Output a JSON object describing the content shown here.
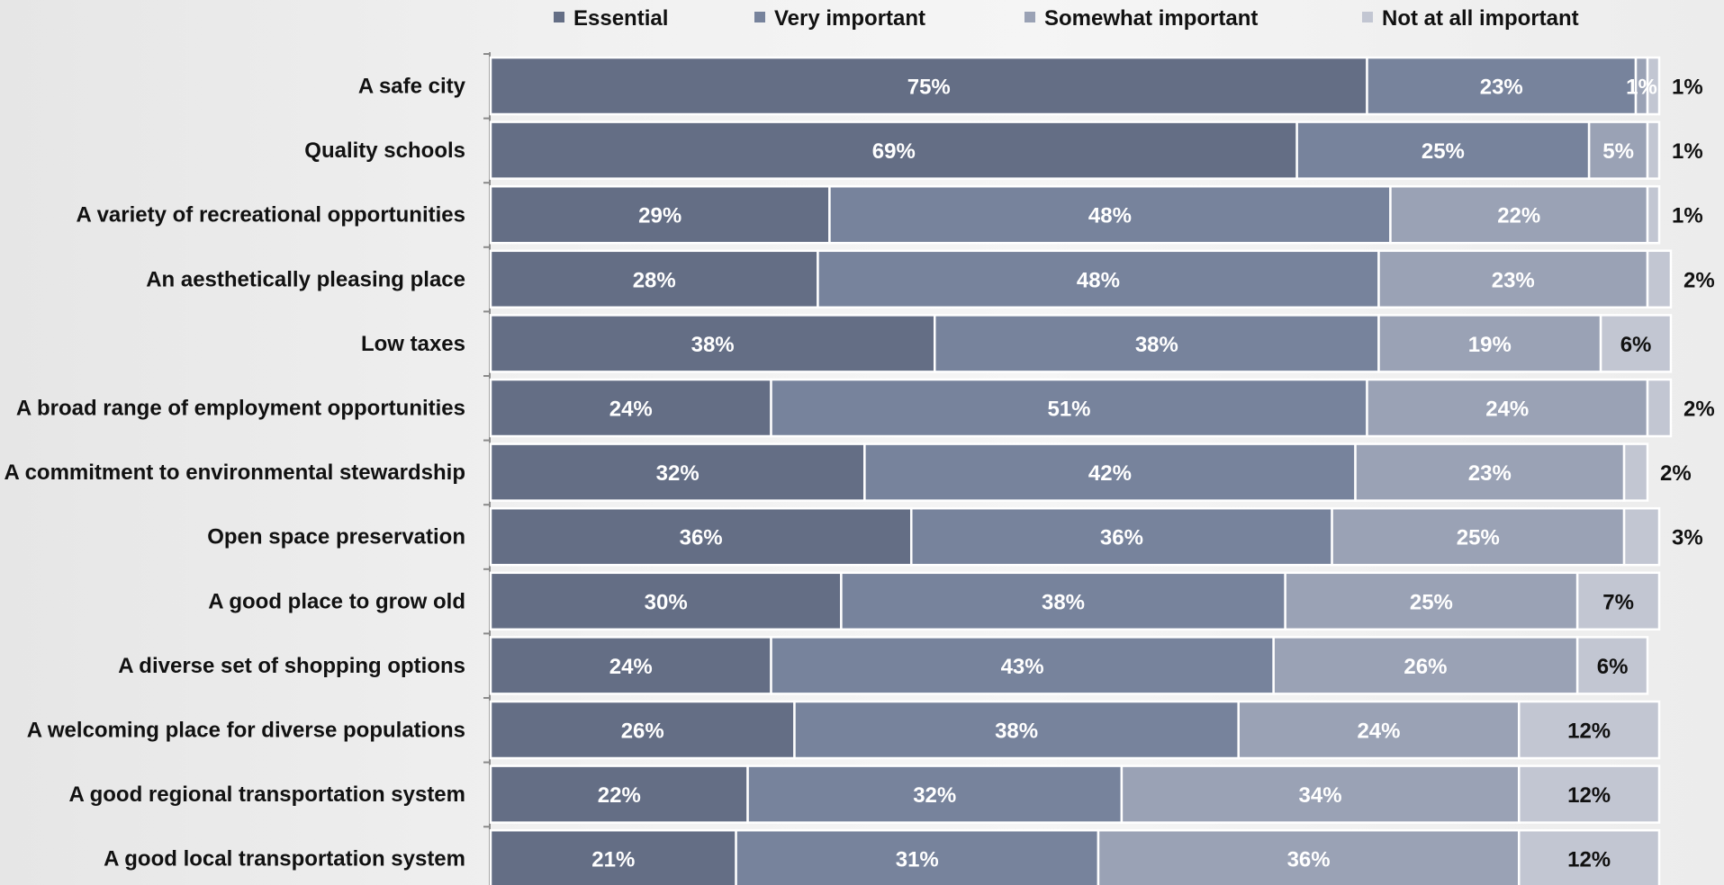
{
  "chart_data": {
    "type": "bar",
    "orientation": "horizontal",
    "stacked": true,
    "legend_position": "top",
    "xlim": [
      0,
      100
    ],
    "categories": [
      "A safe city",
      "Quality schools",
      "A variety of recreational opportunities",
      "An aesthetically pleasing place",
      "Low taxes",
      "A broad range of employment opportunities",
      "A commitment to environmental stewardship",
      "Open space preservation",
      "A good place to grow old",
      "A diverse set of shopping options",
      "A welcoming place for diverse populations",
      "A good regional transportation system",
      "A good local transportation system"
    ],
    "series": [
      {
        "name": "Essential",
        "color": "#646e85",
        "values": [
          75,
          69,
          29,
          28,
          38,
          24,
          32,
          36,
          30,
          24,
          26,
          22,
          21
        ],
        "labels": [
          "75%",
          "69%",
          "29%",
          "28%",
          "38%",
          "24%",
          "32%",
          "36%",
          "30%",
          "24%",
          "26%",
          "22%",
          "21%"
        ]
      },
      {
        "name": "Very important",
        "color": "#77839c",
        "values": [
          23,
          25,
          48,
          48,
          38,
          51,
          42,
          36,
          38,
          43,
          38,
          32,
          31
        ],
        "labels": [
          "23%",
          "25%",
          "48%",
          "48%",
          "38%",
          "51%",
          "42%",
          "36%",
          "38%",
          "43%",
          "38%",
          "32%",
          "31%"
        ]
      },
      {
        "name": "Somewhat important",
        "color": "#9aa2b5",
        "values": [
          1,
          5,
          22,
          23,
          19,
          24,
          23,
          25,
          25,
          26,
          24,
          34,
          36
        ],
        "labels": [
          "1%",
          "5%",
          "22%",
          "23%",
          "19%",
          "24%",
          "23%",
          "25%",
          "25%",
          "26%",
          "24%",
          "34%",
          "36%"
        ]
      },
      {
        "name": "Not at all important",
        "color": "#c2c6d2",
        "values": [
          1,
          1,
          1,
          2,
          6,
          2,
          2,
          3,
          7,
          6,
          12,
          12,
          12
        ],
        "labels": [
          "1%",
          "1%",
          "1%",
          "2%",
          "6%",
          "2%",
          "2%",
          "3%",
          "7%",
          "6%",
          "12%",
          "12%",
          "12%"
        ]
      }
    ]
  }
}
